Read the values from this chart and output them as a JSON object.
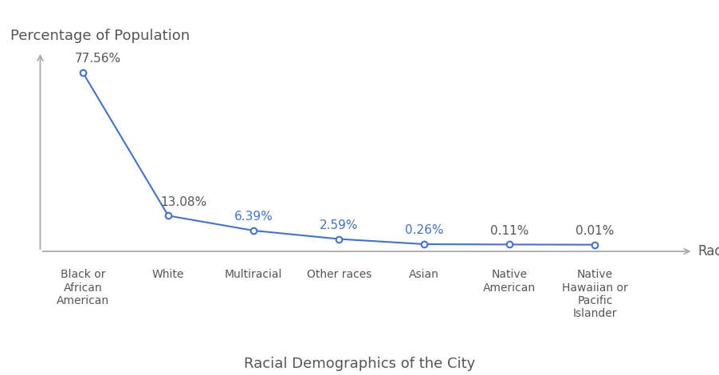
{
  "categories": [
    "Black or\nAfrican\nAmerican",
    "White",
    "Multiracial",
    "Other races",
    "Asian",
    "Native\nAmerican",
    "Native\nHawaiian or\nPacific\nIslander"
  ],
  "values": [
    77.56,
    13.08,
    6.39,
    2.59,
    0.26,
    0.11,
    0.01
  ],
  "labels": [
    "77.56%",
    "13.08%",
    "6.39%",
    "2.59%",
    "0.26%",
    "0.11%",
    "0.01%"
  ],
  "line_color": "#4472C4",
  "marker_color": "#4472C4",
  "marker_face": "#ffffff",
  "label_colors": [
    "#555555",
    "#555555",
    "#4472C4",
    "#4472C4",
    "#4472C4",
    "#555555",
    "#555555"
  ],
  "title": "Racial Demographics of the City",
  "ylabel": "Percentage of Population",
  "xlabel": "Race",
  "title_fontsize": 13,
  "ylabel_fontsize": 13,
  "xlabel_fontsize": 12,
  "tick_label_fontsize": 10,
  "data_label_fontsize": 11,
  "background_color": "#ffffff",
  "axis_color": "#aaaaaa",
  "text_color": "#555555"
}
